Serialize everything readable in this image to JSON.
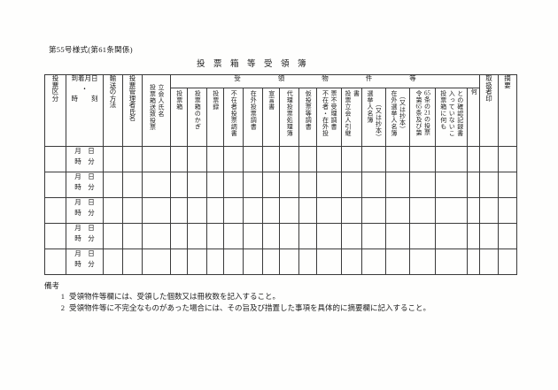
{
  "form": {
    "form_number": "第55号様式(第61条関係)",
    "title": "投　票　箱　等　受　領　簿"
  },
  "table": {
    "left_columns": [
      {
        "label": "投票区分"
      },
      {
        "lines": [
          "到着月日",
          "・",
          "時　　刻"
        ]
      },
      {
        "label": "輸送の方法"
      },
      {
        "label": "投票管理者氏名"
      },
      {
        "lines": [
          "投票箱送致投票",
          "立会人氏名"
        ]
      }
    ],
    "group_header": "受領物件等",
    "item_columns": [
      {
        "lines": [
          "投票箱"
        ]
      },
      {
        "lines": [
          "投票箱のかぎ"
        ]
      },
      {
        "lines": [
          "投票録"
        ]
      },
      {
        "lines": [
          "不在者投票調書"
        ]
      },
      {
        "lines": [
          "在外投票調書"
        ]
      },
      {
        "lines": [
          "宣言書"
        ]
      },
      {
        "lines": [
          "代理投票処理簿"
        ]
      },
      {
        "lines": [
          "仮投票等調書"
        ]
      },
      {
        "lines": [
          "不在者・在外投",
          "票不受理調書"
        ]
      },
      {
        "lines": [
          "投票立会人引継",
          "書"
        ]
      },
      {
        "lines": [
          "選挙人名簿",
          "（又は抄本）"
        ]
      },
      {
        "lines": [
          "在外選挙人名簿",
          "（又は抄本）"
        ]
      },
      {
        "lines": [
          "令第65条及び第",
          "65条の21の投票"
        ]
      },
      {
        "lines": [
          "投票箱に何も",
          "入っていないこ",
          "との確認記録書"
        ]
      },
      {
        "lines": [
          "何"
        ]
      }
    ],
    "right_columns": [
      {
        "label": "取扱者印"
      },
      {
        "label": "摘要"
      }
    ],
    "row_time_labels": {
      "line1": "月　日",
      "line2": "時　分"
    },
    "row_count": 5
  },
  "notes": {
    "heading": "備考",
    "items": [
      {
        "num": "1",
        "text": "受領物件等欄には、受領した個数又は冊枚数を記入すること。"
      },
      {
        "num": "2",
        "text": "受領物件等に不完全なものがあった場合には、その旨及び措置した事項を具体的に摘要欄に記入すること。"
      }
    ]
  }
}
